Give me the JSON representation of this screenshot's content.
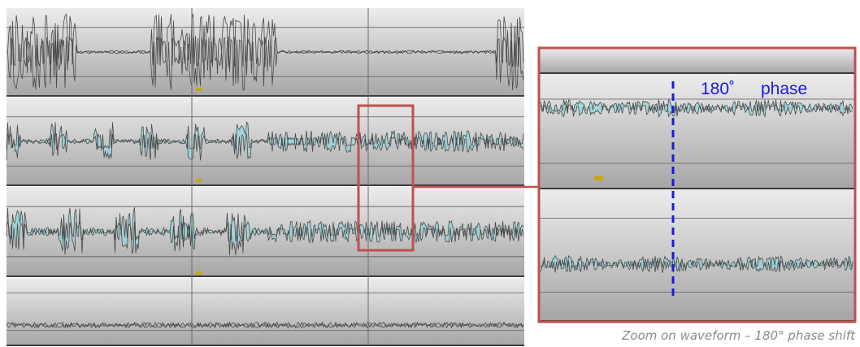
{
  "zoom_label": {
    "angle": "180˚",
    "word": "phase"
  },
  "caption": "Zoom on waveform – 180° phase shift"
}
